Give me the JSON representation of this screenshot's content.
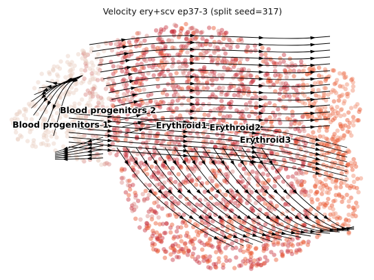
{
  "chart_data": {
    "type": "scatter",
    "title": "Velocity ery+scv ep37-3 (split seed=317)",
    "xlabel": "",
    "ylabel": "",
    "grid": false,
    "legend": "none",
    "overlay": "velocity streamlines with arrowheads",
    "point_color_scale": [
      "#e9cfc0",
      "#d98a86",
      "#c8323d",
      "#e8552c",
      "#f08a6a"
    ],
    "clusters": [
      {
        "name": "Blood progenitors 1",
        "x": 0.08,
        "y": 0.43
      },
      {
        "name": "Blood progenitors 2",
        "x": 0.22,
        "y": 0.38
      },
      {
        "name": "Erythroid1",
        "x": 0.47,
        "y": 0.44
      },
      {
        "name": "Erythroid2",
        "x": 0.59,
        "y": 0.45
      },
      {
        "name": "Erythroid3",
        "x": 0.72,
        "y": 0.5
      }
    ]
  }
}
